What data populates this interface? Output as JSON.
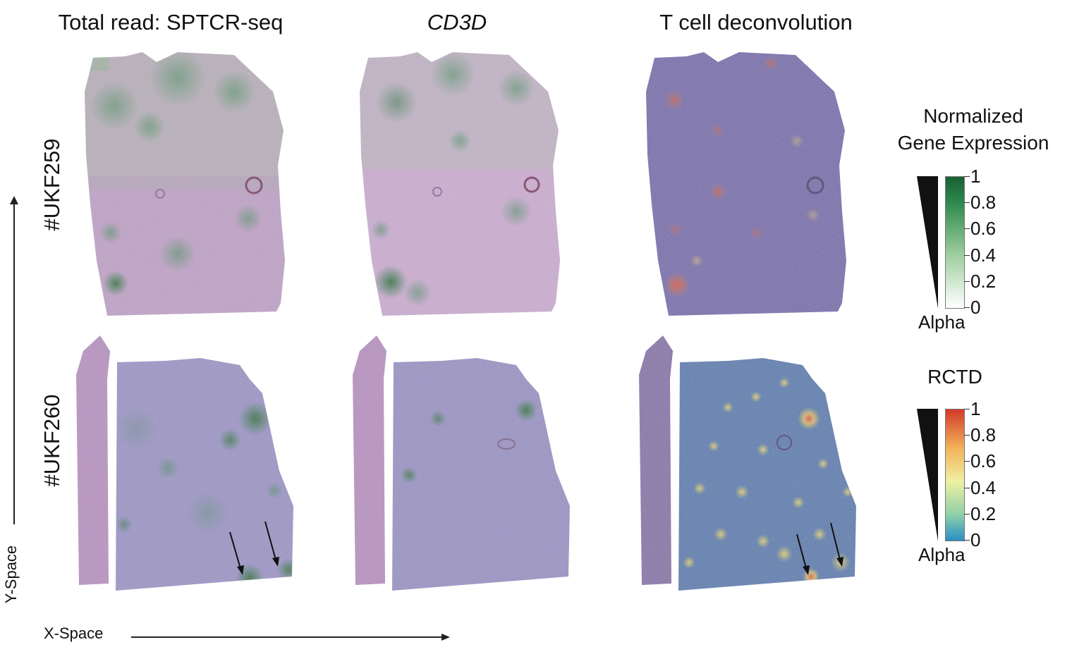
{
  "columns": [
    {
      "title": "Total read: SPTCR-seq",
      "italic": false
    },
    {
      "title": "CD3D",
      "italic": true
    },
    {
      "title": "T cell deconvolution",
      "italic": false
    }
  ],
  "rows": [
    {
      "label": "#UKF259"
    },
    {
      "label": "#UKF260"
    }
  ],
  "axes": {
    "x_label": "X-Space",
    "y_label": "Y-Space"
  },
  "legends": [
    {
      "title_line1": "Normalized",
      "title_line2": "Gene Expression",
      "ticks": [
        "1",
        "0.8",
        "0.6",
        "0.4",
        "0.2",
        "0"
      ],
      "alpha_label": "Alpha",
      "colors": [
        "#ffffff",
        "#1e6e3a"
      ]
    },
    {
      "title_line1": "RCTD",
      "title_line2": "",
      "ticks": [
        "1",
        "0.8",
        "0.6",
        "0.4",
        "0.2",
        "0"
      ],
      "alpha_label": "Alpha",
      "colors": [
        "#2a8fc4",
        "#a6d8a8",
        "#f4f0a0",
        "#f0a050",
        "#d23a2a"
      ]
    }
  ],
  "tissue_colors": {
    "he_pink": "#c8a6cf",
    "he_purple": "#8c7bbf",
    "green_expr": "#2e7d46",
    "deconv_blue": "#5f6fb0",
    "hotspot_red": "#d84a3a",
    "hotspot_yellow": "#e8d070"
  }
}
